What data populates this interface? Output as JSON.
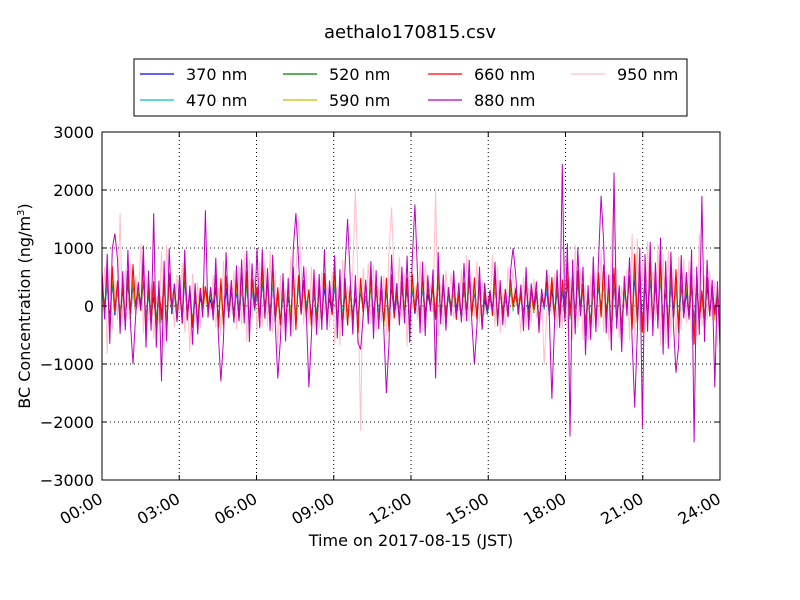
{
  "chart_data": {
    "type": "line",
    "title": "aethalo170815.csv",
    "xlabel": "Time on 2017-08-15 (JST)",
    "ylabel_main": "BC Concentration (ng/m",
    "ylabel_sup": "3",
    "ylabel_close": ")",
    "xlim": [
      "00:00",
      "24:00"
    ],
    "ylim": [
      -3000,
      3000
    ],
    "grid": true,
    "legend_position": "top-center",
    "x_ticks": [
      "00:00",
      "03:00",
      "06:00",
      "09:00",
      "12:00",
      "15:00",
      "18:00",
      "21:00",
      "24:00"
    ],
    "y_ticks": [
      "3000",
      "2000",
      "1000",
      "0",
      "−1000",
      "−2000",
      "−3000"
    ],
    "y_tick_values": [
      3000,
      2000,
      1000,
      0,
      -1000,
      -2000,
      -3000
    ],
    "series": [
      {
        "name": "370 nm",
        "color": "#0000ff"
      },
      {
        "name": "470 nm",
        "color": "#00bfbf"
      },
      {
        "name": "520 nm",
        "color": "#008000"
      },
      {
        "name": "590 nm",
        "color": "#bfbf00"
      },
      {
        "name": "660 nm",
        "color": "#ff0000"
      },
      {
        "name": "880 nm",
        "color": "#bf00bf"
      },
      {
        "name": "950 nm",
        "color": "#ffc0cb"
      }
    ],
    "series_880nm_sampled_peaks": [
      {
        "t": "00:30",
        "y": 1250
      },
      {
        "t": "01:10",
        "y": -1000
      },
      {
        "t": "02:00",
        "y": 1600
      },
      {
        "t": "02:20",
        "y": -1300
      },
      {
        "t": "04:00",
        "y": 1650
      },
      {
        "t": "04:40",
        "y": -1300
      },
      {
        "t": "06:00",
        "y": 1000
      },
      {
        "t": "06:50",
        "y": -1250
      },
      {
        "t": "07:30",
        "y": 1600
      },
      {
        "t": "08:00",
        "y": -1400
      },
      {
        "t": "09:30",
        "y": 1500
      },
      {
        "t": "10:00",
        "y": -750
      },
      {
        "t": "11:00",
        "y": -1500
      },
      {
        "t": "12:10",
        "y": 1750
      },
      {
        "t": "13:00",
        "y": -1250
      },
      {
        "t": "14:30",
        "y": -1000
      },
      {
        "t": "16:00",
        "y": 1000
      },
      {
        "t": "17:30",
        "y": -1600
      },
      {
        "t": "17:50",
        "y": 2450
      },
      {
        "t": "18:10",
        "y": -2250
      },
      {
        "t": "19:20",
        "y": 1900
      },
      {
        "t": "19:50",
        "y": 2300
      },
      {
        "t": "20:40",
        "y": -1750
      },
      {
        "t": "21:00",
        "y": -2100
      },
      {
        "t": "22:15",
        "y": -1150
      },
      {
        "t": "23:00",
        "y": -2350
      },
      {
        "t": "23:20",
        "y": 1900
      },
      {
        "t": "23:50",
        "y": -1400
      }
    ],
    "series_950nm_sampled_peaks": [
      {
        "t": "00:40",
        "y": 1600
      },
      {
        "t": "07:40",
        "y": 1500
      },
      {
        "t": "09:50",
        "y": 2000
      },
      {
        "t": "10:00",
        "y": -2150
      },
      {
        "t": "11:15",
        "y": 1700
      },
      {
        "t": "13:00",
        "y": 2000
      },
      {
        "t": "17:10",
        "y": -1000
      },
      {
        "t": "19:50",
        "y": 2000
      },
      {
        "t": "23:10",
        "y": 1250
      }
    ]
  }
}
